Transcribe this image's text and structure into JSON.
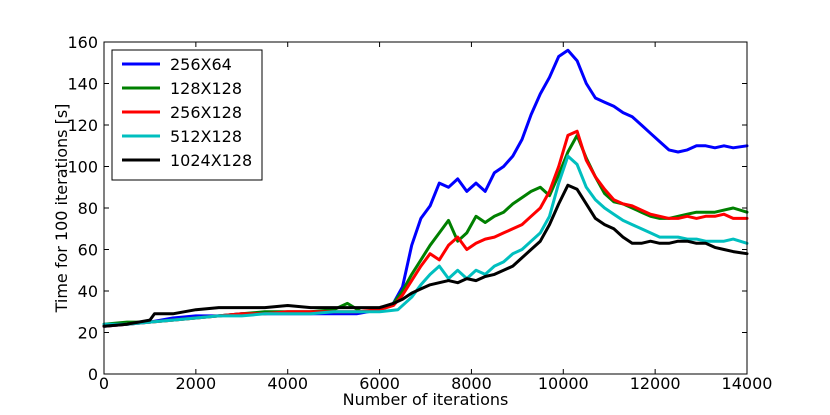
{
  "chart_data": {
    "type": "line",
    "xlabel": "Number of iterations",
    "ylabel": "Time for 100 iterations [s]",
    "xlim": [
      0,
      14000
    ],
    "ylim": [
      0,
      160
    ],
    "xticks": [
      0,
      2000,
      4000,
      6000,
      8000,
      10000,
      12000,
      14000
    ],
    "yticks": [
      0,
      20,
      40,
      60,
      80,
      100,
      120,
      140,
      160
    ],
    "legend_position": "top-left",
    "grid": false,
    "series": [
      {
        "name": "256X64",
        "color": "#0000ff",
        "x": [
          0,
          500,
          1000,
          1500,
          2000,
          2500,
          3000,
          3500,
          4000,
          4500,
          5000,
          5500,
          6000,
          6300,
          6500,
          6700,
          6900,
          7100,
          7300,
          7500,
          7700,
          7900,
          8100,
          8300,
          8500,
          8700,
          8900,
          9100,
          9300,
          9500,
          9700,
          9900,
          10100,
          10300,
          10500,
          10700,
          10900,
          11100,
          11300,
          11500,
          11700,
          11900,
          12100,
          12300,
          12500,
          12700,
          12900,
          13100,
          13300,
          13500,
          13700,
          14000
        ],
        "values": [
          23,
          24,
          25,
          27,
          28,
          28,
          29,
          29,
          29,
          29,
          29,
          29,
          31,
          34,
          42,
          62,
          75,
          81,
          92,
          90,
          94,
          88,
          92,
          88,
          97,
          100,
          105,
          113,
          125,
          135,
          143,
          153,
          156,
          151,
          140,
          133,
          131,
          129,
          126,
          124,
          120,
          116,
          112,
          108,
          107,
          108,
          110,
          110,
          109,
          110,
          109,
          110
        ]
      },
      {
        "name": "128X128",
        "color": "#008000",
        "x": [
          0,
          500,
          1000,
          1500,
          2000,
          2500,
          3000,
          3500,
          4000,
          4500,
          5000,
          5300,
          5600,
          6000,
          6300,
          6500,
          6700,
          6900,
          7100,
          7300,
          7500,
          7700,
          7900,
          8100,
          8300,
          8500,
          8700,
          8900,
          9100,
          9300,
          9500,
          9700,
          9900,
          10100,
          10300,
          10500,
          10700,
          10900,
          11100,
          11300,
          11500,
          11700,
          11900,
          12100,
          12300,
          12500,
          12700,
          12900,
          13100,
          13300,
          13500,
          13700,
          14000
        ],
        "values": [
          24,
          25,
          25,
          26,
          27,
          28,
          29,
          30,
          30,
          30,
          31,
          34,
          30,
          31,
          34,
          40,
          48,
          55,
          62,
          68,
          74,
          64,
          68,
          76,
          73,
          76,
          78,
          82,
          85,
          88,
          90,
          86,
          96,
          107,
          115,
          104,
          95,
          87,
          83,
          82,
          80,
          78,
          76,
          75,
          75,
          76,
          77,
          78,
          78,
          78,
          79,
          80,
          78
        ]
      },
      {
        "name": "256X128",
        "color": "#ff0000",
        "x": [
          0,
          500,
          1000,
          1500,
          2000,
          2500,
          3000,
          3500,
          4000,
          4500,
          5000,
          5500,
          6000,
          6300,
          6500,
          6700,
          6900,
          7100,
          7300,
          7500,
          7700,
          7900,
          8100,
          8300,
          8500,
          8700,
          8900,
          9100,
          9300,
          9500,
          9700,
          9900,
          10100,
          10300,
          10500,
          10700,
          10900,
          11100,
          11300,
          11500,
          11700,
          11900,
          12100,
          12300,
          12500,
          12700,
          12900,
          13100,
          13300,
          13500,
          13700,
          14000
        ],
        "values": [
          23,
          24,
          25,
          26,
          27,
          28,
          29,
          29,
          30,
          30,
          30,
          30,
          31,
          33,
          38,
          45,
          52,
          58,
          55,
          62,
          66,
          60,
          63,
          65,
          66,
          68,
          70,
          72,
          76,
          80,
          88,
          100,
          115,
          117,
          103,
          95,
          89,
          84,
          82,
          81,
          79,
          77,
          76,
          75,
          75,
          76,
          75,
          76,
          76,
          77,
          75,
          75
        ]
      },
      {
        "name": "512X128",
        "color": "#00bfbf",
        "x": [
          0,
          500,
          1000,
          1500,
          2000,
          2500,
          3000,
          3500,
          4000,
          4500,
          5000,
          5500,
          6000,
          6400,
          6700,
          6900,
          7100,
          7300,
          7500,
          7700,
          7900,
          8100,
          8300,
          8500,
          8700,
          8900,
          9100,
          9300,
          9500,
          9700,
          9900,
          10100,
          10300,
          10500,
          10700,
          10900,
          11100,
          11300,
          11500,
          11700,
          11900,
          12100,
          12300,
          12500,
          12700,
          12900,
          13100,
          13300,
          13500,
          13700,
          14000
        ],
        "values": [
          24,
          24,
          25,
          26,
          27,
          28,
          28,
          29,
          29,
          29,
          30,
          30,
          30,
          31,
          37,
          43,
          48,
          52,
          46,
          50,
          46,
          50,
          48,
          52,
          54,
          58,
          60,
          64,
          68,
          76,
          92,
          105,
          101,
          90,
          84,
          80,
          77,
          74,
          72,
          70,
          68,
          66,
          66,
          66,
          65,
          65,
          64,
          64,
          64,
          65,
          63
        ]
      },
      {
        "name": "1024X128",
        "color": "#000000",
        "x": [
          0,
          500,
          1000,
          1100,
          1500,
          2000,
          2500,
          3000,
          3500,
          4000,
          4500,
          5000,
          5500,
          6000,
          6300,
          6500,
          6700,
          6900,
          7100,
          7300,
          7500,
          7700,
          7900,
          8100,
          8300,
          8500,
          8700,
          8900,
          9100,
          9300,
          9500,
          9700,
          9900,
          10100,
          10300,
          10500,
          10700,
          10900,
          11100,
          11300,
          11500,
          11700,
          11900,
          12100,
          12300,
          12500,
          12700,
          12900,
          13100,
          13300,
          13500,
          13700,
          14000
        ],
        "values": [
          23,
          24,
          26,
          29,
          29,
          31,
          32,
          32,
          32,
          33,
          32,
          32,
          32,
          32,
          34,
          36,
          39,
          41,
          43,
          44,
          45,
          44,
          46,
          45,
          47,
          48,
          50,
          52,
          56,
          60,
          64,
          72,
          82,
          91,
          89,
          82,
          75,
          72,
          70,
          66,
          63,
          63,
          64,
          63,
          63,
          64,
          64,
          63,
          63,
          61,
          60,
          59,
          58
        ]
      }
    ]
  }
}
